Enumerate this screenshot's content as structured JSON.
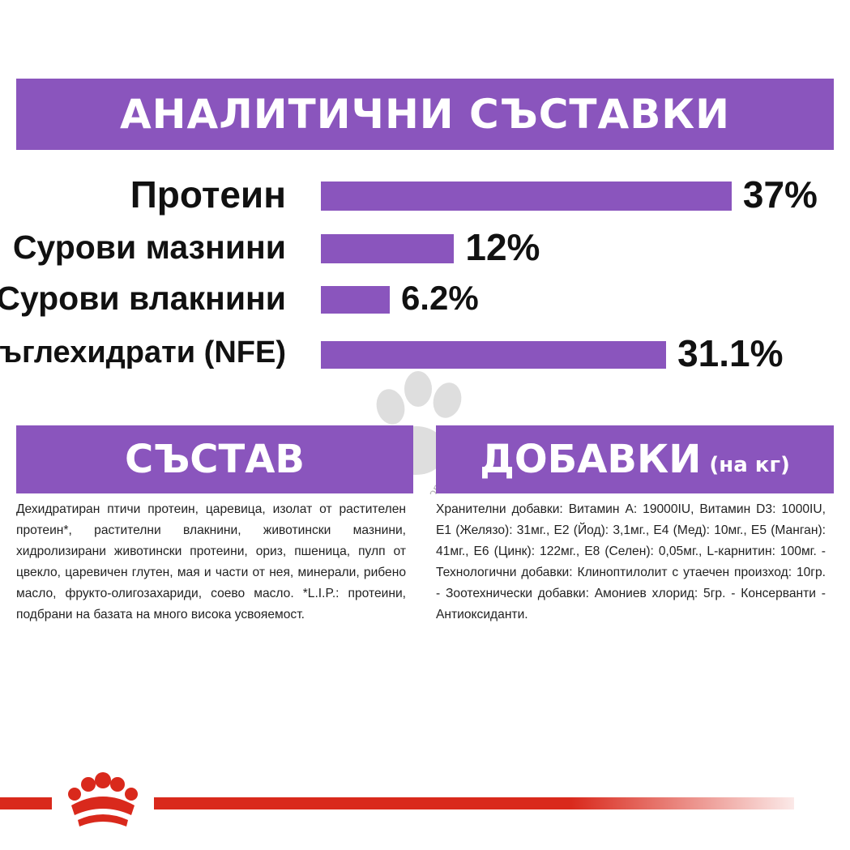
{
  "banners": {
    "analytic": "АНАЛИТИЧНИ СЪСТАВКИ",
    "composition": "СЪСТАВ",
    "additives": "ДОБАВКИ",
    "additives_sub": "(на кг)"
  },
  "chart_data": {
    "type": "bar",
    "orientation": "horizontal",
    "categories": [
      "Протеин",
      "Сурови мазнини",
      "Сурови влакнини",
      "Въглехидрати (NFE)"
    ],
    "values": [
      37,
      12,
      6.2,
      31.1
    ],
    "value_labels": [
      "37%",
      "12%",
      "6.2%",
      "31.1%"
    ],
    "unit": "%",
    "bar_color": "#8a55bd"
  },
  "composition_text": "Дехидратиран птичи протеин, царевица, изолат от растителен протеин*, растителни влакнини, животински мазнини, хидролизирани животински протеини, ориз, пшеница, пулп от цвекло, царевичен глутен, мая и части от нея, минерали, рибено масло, фрукто-олигозахариди, соево масло. *L.I.P.: протеини, подбрани на базата на много висока усвояемост.",
  "additives_text": "Хранителни добавки: Витамин А: 19000IU, Витамин D3: 1000IU, Е1 (Желязо): 31мг., Е2 (Йод): 3,1мг., Е4 (Мед): 10мг., Е5 (Манган): 41мг., Е6 (Цинк): 122мг., Е8 (Селен): 0,05мг., L-карнитин: 100мг. - Технологични добавки: Клиноптилолит с утаечен произход: 10гр. - Зоотехнически добавки: Амониев хлорид: 5гр. - Консерванти - Антиоксиданти.",
  "watermark": "zoomagazin.eu",
  "colors": {
    "accent": "#8a55bd",
    "brand_red": "#d9291c"
  },
  "icons": {
    "watermark": "paw-icon",
    "logo": "crown-logo-icon"
  }
}
